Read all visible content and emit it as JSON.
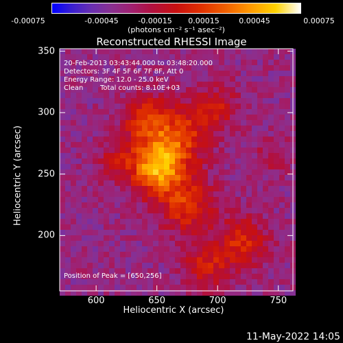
{
  "colorbar": {
    "ticks": [
      "-0.00075",
      "-0.00045",
      "-0.00015",
      "0.00015",
      "0.00045",
      "0.00075"
    ],
    "units": "(photons cm⁻² s⁻¹ asec⁻²)"
  },
  "chart_data": {
    "type": "heatmap",
    "title": "Reconstructed RHESSI Image",
    "xlabel": "Heliocentric X (arcsec)",
    "ylabel": "Heliocentric Y (arcsec)",
    "xlim": [
      570,
      762
    ],
    "ylim": [
      155,
      352
    ],
    "xticks": [
      600,
      650,
      700,
      750
    ],
    "yticks": [
      200,
      250,
      300,
      350
    ],
    "color_range": [
      -0.00075,
      0.00075
    ],
    "peak_position": [
      650,
      256
    ],
    "grid": false
  },
  "annotations": {
    "line1": "20-Feb-2013 03:43:44.000 to 03:48:20.000",
    "line2": "Detectors: 3F 4F 5F 6F 7F 8F, Att 0",
    "line3": "Energy Range: 12.0 - 25.0 keV",
    "line4_a": "Clean",
    "line4_b": "Total counts: 8.10E+03",
    "peak": "Position of Peak = [650,256]"
  },
  "footer": {
    "date": "11-May-2022 14:05"
  }
}
